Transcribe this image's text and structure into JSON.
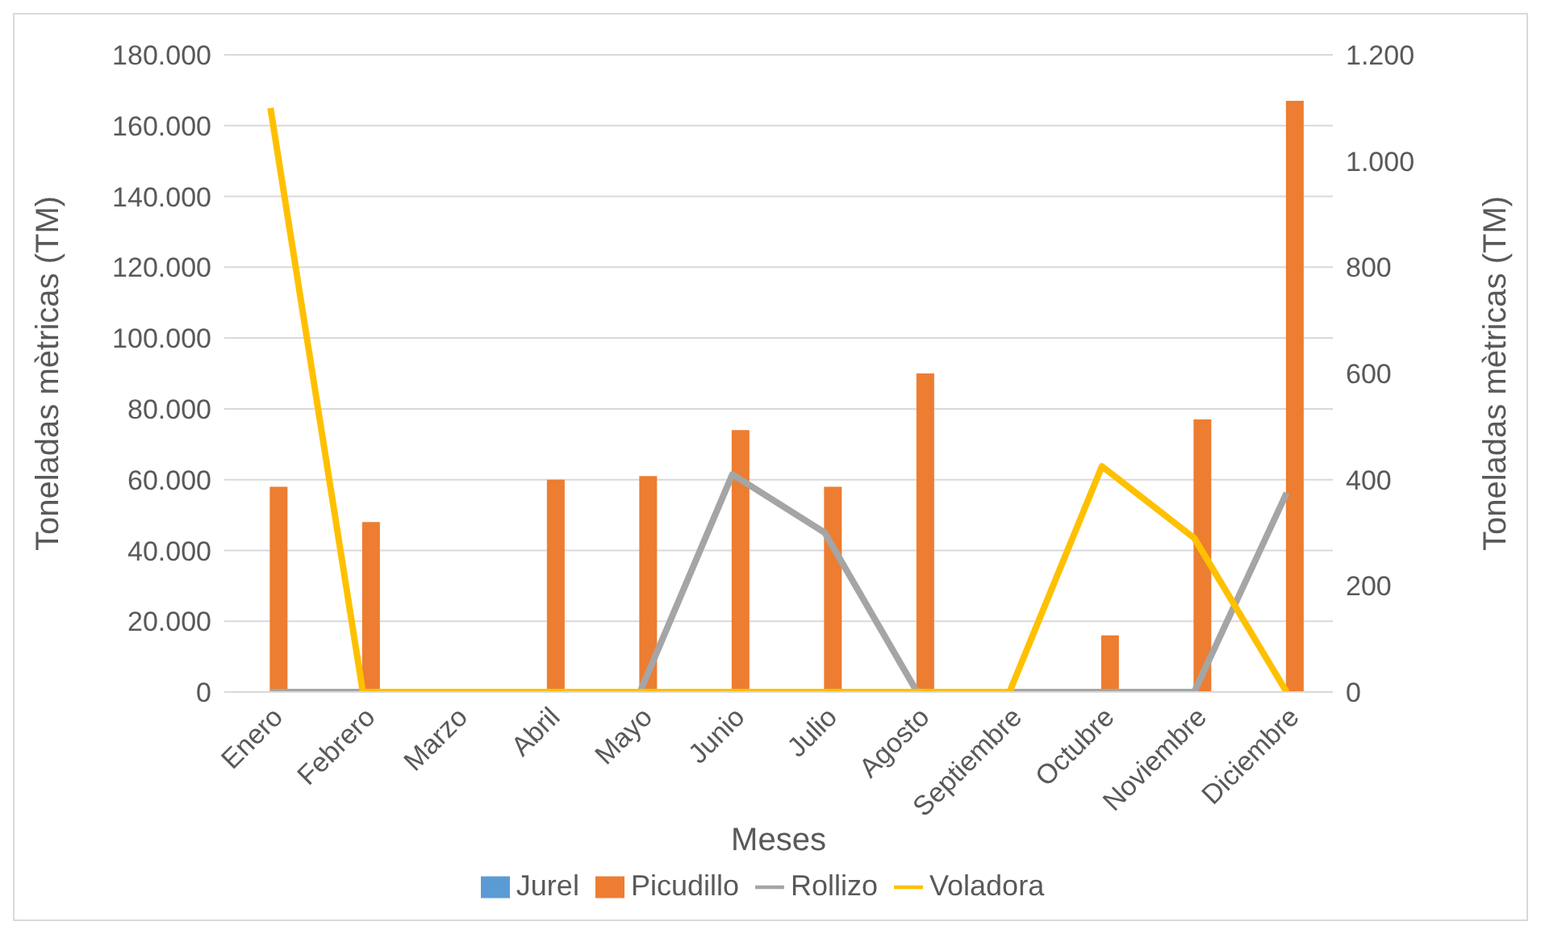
{
  "chart_data": {
    "type": "bar",
    "categories": [
      "Enero",
      "Febrero",
      "Marzo",
      "Abril",
      "Mayo",
      "Junio",
      "Julio",
      "Agosto",
      "Septiembre",
      "Octubre",
      "Noviembre",
      "Diciembre"
    ],
    "series": [
      {
        "name": "Jurel",
        "color": "#5b9bd5",
        "values": [
          0,
          0,
          0,
          0,
          0,
          0,
          0,
          0,
          0,
          0,
          0,
          0
        ]
      },
      {
        "name": "Picudillo",
        "color": "#ed7d31",
        "values": [
          58000,
          48000,
          0,
          60000,
          61000,
          74000,
          58000,
          90000,
          0,
          16000,
          77000,
          167000
        ]
      },
      {
        "name": "Rollizo",
        "type": "line",
        "axis": "y2",
        "color": "#a5a5a5",
        "values": [
          0,
          0,
          0,
          0,
          0,
          410,
          300,
          0,
          0,
          0,
          0,
          375
        ]
      },
      {
        "name": "Voladora",
        "type": "line",
        "axis": "y2",
        "color": "#ffc000",
        "values": [
          1100,
          0,
          0,
          0,
          0,
          0,
          0,
          0,
          0,
          425,
          290,
          0
        ]
      }
    ],
    "xlabel": "Meses",
    "ylabel": "Toneladas mètricas (TM)",
    "y2label": "Toneladas mètricas (TM)",
    "ylim": [
      0,
      180000
    ],
    "yticks": [
      0,
      {
        "value": 20000,
        "label": "20.000"
      },
      {
        "value": 40000,
        "label": "40.000"
      },
      {
        "value": 60000,
        "label": "60.000"
      },
      {
        "value": 80000,
        "label": "80.000"
      },
      {
        "value": 100000,
        "label": "100.000"
      },
      {
        "value": 120000,
        "label": "120.000"
      },
      {
        "value": 140000,
        "label": "140.000"
      },
      {
        "value": 160000,
        "label": "160.000"
      },
      {
        "value": 180000,
        "label": "180.000"
      }
    ],
    "y2lim": [
      0,
      1200
    ],
    "y2ticks": [
      0,
      200,
      400,
      600,
      800,
      {
        "value": 1000,
        "label": "1.000"
      },
      {
        "value": 1200,
        "label": "1.200"
      }
    ],
    "grid": "y",
    "legend": "bottom",
    "marker": "none",
    "line_style": "solid"
  }
}
